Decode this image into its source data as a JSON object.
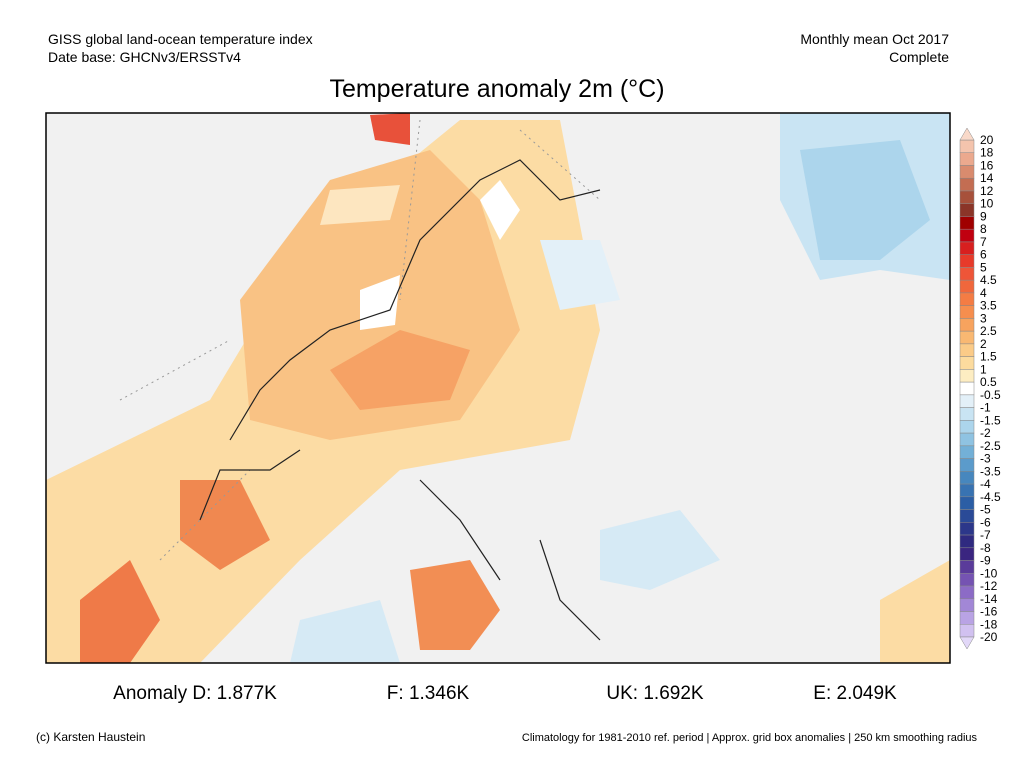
{
  "header": {
    "left": [
      "GISS global land-ocean temperature index",
      "Date base: GHCNv3/ERSSTv4"
    ],
    "right": [
      "Monthly mean Oct 2017",
      "Complete"
    ]
  },
  "title": "Temperature anomaly 2m (°C)",
  "colorbar": {
    "labels": [
      "20",
      "18",
      "16",
      "14",
      "12",
      "10",
      "9",
      "8",
      "7",
      "6",
      "5",
      "4.5",
      "4",
      "3.5",
      "3",
      "2.5",
      "2",
      "1.5",
      "1",
      "0.5",
      "-0.5",
      "-1",
      "-1.5",
      "-2",
      "-2.5",
      "-3",
      "-3.5",
      "-4",
      "-4.5",
      "-5",
      "-6",
      "-7",
      "-8",
      "-9",
      "-10",
      "-12",
      "-14",
      "-16",
      "-18",
      "-20"
    ],
    "colors": [
      "#f4c4ad",
      "#eba98e",
      "#d98b6e",
      "#c36d52",
      "#a7513b",
      "#8b3528",
      "#a00000",
      "#c00010",
      "#d81f1f",
      "#e73a2a",
      "#ee5538",
      "#f0673c",
      "#f47c44",
      "#f68e4e",
      "#f7a35e",
      "#f9b872",
      "#fbcb88",
      "#fcdb9e",
      "#fdedc2",
      "#ffffff",
      "#e3f0f8",
      "#c9e4f3",
      "#acd5ec",
      "#8fc3e2",
      "#73b0d7",
      "#5b9bcb",
      "#4787be",
      "#3873b2",
      "#2b5ea5",
      "#2a4a97",
      "#2c378a",
      "#2f2a80",
      "#3a2580",
      "#5a3b9a",
      "#7553b2",
      "#8c6bc6",
      "#a287d6",
      "#b9a3e4",
      "#d1c1f0"
    ],
    "top_color": "#f9d9c9",
    "bottom_color": "#e2d8f8"
  },
  "stats": [
    "Anomaly D: 1.877K",
    "F: 1.346K",
    "UK: 1.692K",
    "E: 2.049K"
  ],
  "footer": {
    "left": "(c) Karsten Haustein",
    "right": "Climatology for 1981-2010 ref. period | Approx. grid box anomalies | 250 km smoothing radius"
  }
}
